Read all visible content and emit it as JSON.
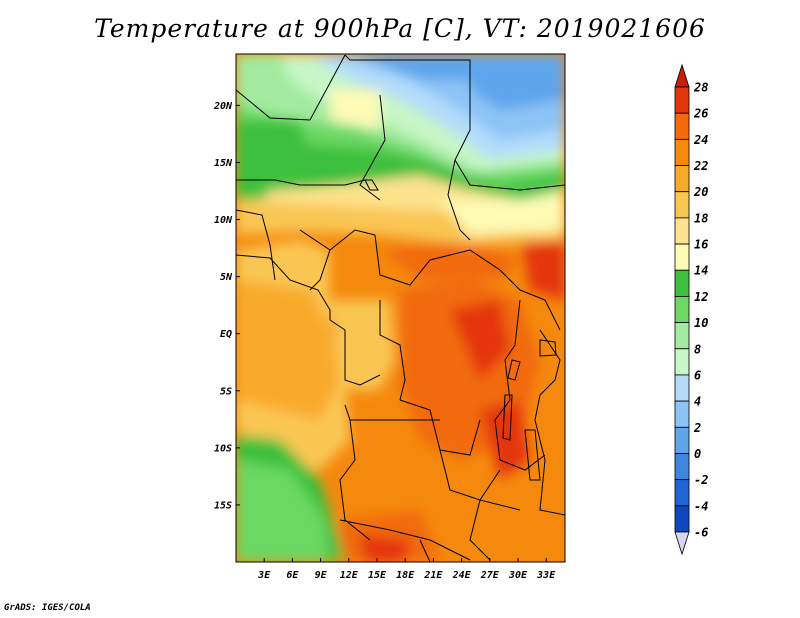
{
  "title": "Temperature at 900hPa [C], VT: 2019021606",
  "credit": "GrADS: IGES/COLA",
  "map": {
    "lat_labels": [
      {
        "lat": 20,
        "label": "20N"
      },
      {
        "lat": 15,
        "label": "15N"
      },
      {
        "lat": 10,
        "label": "10N"
      },
      {
        "lat": 5,
        "label": "5N"
      },
      {
        "lat": 0,
        "label": "EQ"
      },
      {
        "lat": -5,
        "label": "5S"
      },
      {
        "lat": -10,
        "label": "10S"
      },
      {
        "lat": -15,
        "label": "15S"
      }
    ],
    "lon_labels": [
      {
        "lon": 3,
        "label": "3E"
      },
      {
        "lon": 6,
        "label": "6E"
      },
      {
        "lon": 9,
        "label": "9E"
      },
      {
        "lon": 12,
        "label": "12E"
      },
      {
        "lon": 15,
        "label": "15E"
      },
      {
        "lon": 18,
        "label": "18E"
      },
      {
        "lon": 21,
        "label": "21E"
      },
      {
        "lon": 24,
        "label": "24E"
      },
      {
        "lon": 27,
        "label": "27E"
      },
      {
        "lon": 30,
        "label": "30E"
      },
      {
        "lon": 33,
        "label": "33E"
      }
    ],
    "lon_range": [
      0,
      35
    ],
    "lat_range": [
      -20,
      24.5
    ]
  },
  "colorbar": {
    "levels": [
      28,
      26,
      24,
      22,
      20,
      18,
      16,
      14,
      12,
      10,
      8,
      6,
      4,
      2,
      0,
      -2,
      -4,
      -6
    ],
    "top_cap_color": "#c81e0a",
    "bottom_cap_color": "#d6d6f2",
    "bin_colors": [
      "#e4360b",
      "#f26a0a",
      "#f5890e",
      "#f9aa2c",
      "#fac652",
      "#fde38d",
      "#fefbb6",
      "#3cc03c",
      "#6bd863",
      "#a2eba0",
      "#c8f6c6",
      "#b4dcfa",
      "#8cc4f6",
      "#5fa5ec",
      "#3c86e0",
      "#1f66d4",
      "#0f48bc",
      "#0a2a9c",
      "#060c6a"
    ]
  }
}
